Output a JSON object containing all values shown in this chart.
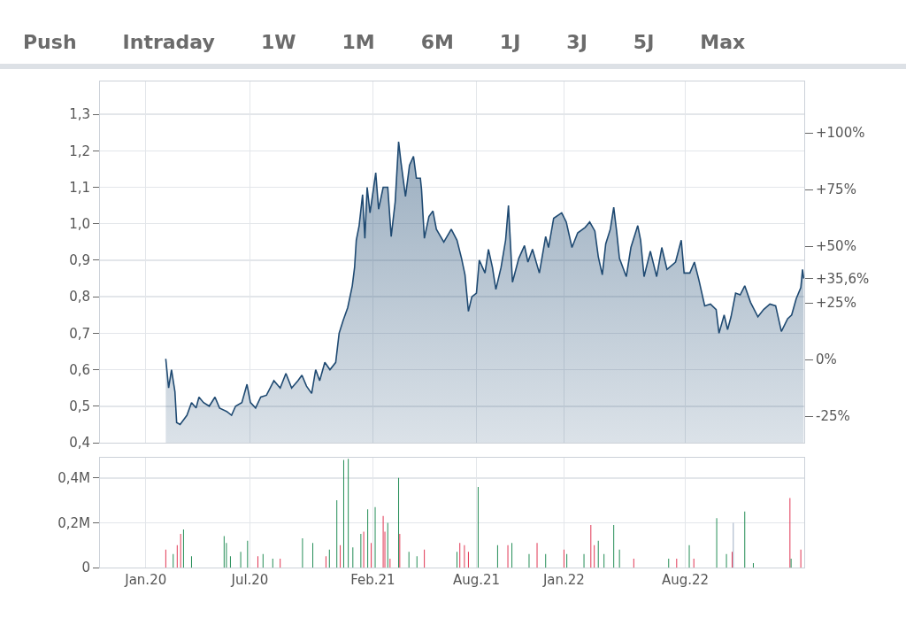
{
  "chart_data": [
    {
      "type": "area",
      "annotations": [
        "Push",
        "Intraday",
        "1W",
        "1M",
        "6M",
        "1J",
        "3J",
        "5J",
        "Max"
      ],
      "tick_labels": "y",
      "grid": true,
      "xlim": [
        "2019-10-13",
        "2023-02-25"
      ],
      "xticks": [
        {
          "value": "2020-01-01",
          "label": null
        },
        {
          "value": "2020-07-01",
          "label": null
        },
        {
          "value": "2021-02-01",
          "label": null
        },
        {
          "value": "2021-08-01",
          "label": null
        },
        {
          "value": "2022-01-01",
          "label": null
        },
        {
          "value": "2022-08-01",
          "label": null
        }
      ],
      "ylim": [
        0.4,
        1.39
      ],
      "yticks": [
        {
          "value": 0.4,
          "label": "0,4"
        },
        {
          "value": 0.5,
          "label": "0,5"
        },
        {
          "value": 0.6,
          "label": "0,6"
        },
        {
          "value": 0.7,
          "label": "0,7"
        },
        {
          "value": 0.8,
          "label": "0,8"
        },
        {
          "value": 0.9,
          "label": "0,9"
        },
        {
          "value": 1.0,
          "label": "1,0"
        },
        {
          "value": 1.1,
          "label": "1,1"
        },
        {
          "value": 1.2,
          "label": "1,2"
        },
        {
          "value": 1.3,
          "label": "1,3"
        }
      ],
      "y2lim": [
        -36.7,
        122.7
      ],
      "y2ticks": [
        {
          "value": -25,
          "label": "-25%"
        },
        {
          "value": 0,
          "label": "0%"
        },
        {
          "value": 25,
          "label": "+25%"
        },
        {
          "value": 35.6,
          "label": "+35,6%"
        },
        {
          "value": 50,
          "label": "+50%"
        },
        {
          "value": 75,
          "label": "+75%"
        },
        {
          "value": 100,
          "label": "+100%"
        }
      ],
      "series": [
        {
          "color": "#1f4a72",
          "x": [
            "2020-02-05",
            "2020-02-10",
            "2020-02-15",
            "2020-02-21",
            "2020-02-24",
            "2020-03-01",
            "2020-03-13",
            "2020-03-21",
            "2020-03-29",
            "2020-04-03",
            "2020-04-11",
            "2020-04-21",
            "2020-05-01",
            "2020-05-09",
            "2020-05-22",
            "2020-05-30",
            "2020-06-06",
            "2020-06-17",
            "2020-06-26",
            "2020-07-02",
            "2020-07-11",
            "2020-07-20",
            "2020-07-30",
            "2020-08-12",
            "2020-08-23",
            "2020-09-02",
            "2020-09-12",
            "2020-09-23",
            "2020-09-30",
            "2020-10-08",
            "2020-10-17",
            "2020-10-24",
            "2020-10-31",
            "2020-11-09",
            "2020-11-18",
            "2020-11-28",
            "2020-12-04",
            "2020-12-11",
            "2020-12-19",
            "2020-12-27",
            "2020-12-31",
            "2021-01-03",
            "2021-01-08",
            "2021-01-14",
            "2021-01-18",
            "2021-01-22",
            "2021-01-27",
            "2021-02-06",
            "2021-02-11",
            "2021-02-19",
            "2021-02-27",
            "2021-03-05",
            "2021-03-12",
            "2021-03-18",
            "2021-03-22",
            "2021-03-30",
            "2021-04-06",
            "2021-04-13",
            "2021-04-18",
            "2021-04-25",
            "2021-04-27",
            "2021-05-02",
            "2021-05-10",
            "2021-05-17",
            "2021-05-23",
            "2021-06-05",
            "2021-06-18",
            "2021-06-28",
            "2021-07-06",
            "2021-07-12",
            "2021-07-18",
            "2021-07-24",
            "2021-08-01",
            "2021-08-06",
            "2021-08-16",
            "2021-08-22",
            "2021-08-29",
            "2021-09-04",
            "2021-09-13",
            "2021-09-21",
            "2021-09-26",
            "2021-10-03",
            "2021-10-14",
            "2021-10-24",
            "2021-10-30",
            "2021-11-07",
            "2021-11-19",
            "2021-11-30",
            "2021-12-05",
            "2021-12-14",
            "2021-12-28",
            "2022-01-05",
            "2022-01-15",
            "2022-01-25",
            "2022-02-07",
            "2022-02-15",
            "2022-02-24",
            "2022-03-02",
            "2022-03-09",
            "2022-03-15",
            "2022-03-23",
            "2022-03-29",
            "2022-04-03",
            "2022-04-08",
            "2022-04-20",
            "2022-04-28",
            "2022-05-10",
            "2022-05-15",
            "2022-05-21",
            "2022-06-01",
            "2022-06-12",
            "2022-06-21",
            "2022-06-30",
            "2022-07-15",
            "2022-07-25",
            "2022-07-30",
            "2022-08-09",
            "2022-08-17",
            "2022-08-25",
            "2022-09-04",
            "2022-09-14",
            "2022-09-24",
            "2022-09-29",
            "2022-10-08",
            "2022-10-14",
            "2022-10-20",
            "2022-10-28",
            "2022-11-05",
            "2022-11-13",
            "2022-11-23",
            "2022-12-06",
            "2022-12-16",
            "2022-12-27",
            "2023-01-06",
            "2023-01-16",
            "2023-01-27",
            "2023-02-03",
            "2023-02-11",
            "2023-02-19",
            "2023-02-22",
            "2023-02-24"
          ],
          "values": [
            0.63,
            0.55,
            0.6,
            0.54,
            0.455,
            0.45,
            0.475,
            0.51,
            0.495,
            0.525,
            0.51,
            0.5,
            0.525,
            0.495,
            0.485,
            0.475,
            0.5,
            0.51,
            0.56,
            0.51,
            0.495,
            0.525,
            0.53,
            0.57,
            0.55,
            0.59,
            0.55,
            0.57,
            0.585,
            0.555,
            0.535,
            0.6,
            0.57,
            0.62,
            0.6,
            0.62,
            0.7,
            0.735,
            0.77,
            0.83,
            0.88,
            0.955,
            0.995,
            1.08,
            0.96,
            1.1,
            1.03,
            1.14,
            1.04,
            1.1,
            1.1,
            0.965,
            1.06,
            1.225,
            1.17,
            1.075,
            1.16,
            1.185,
            1.125,
            1.125,
            1.095,
            0.96,
            1.02,
            1.035,
            0.985,
            0.95,
            0.985,
            0.955,
            0.905,
            0.86,
            0.76,
            0.8,
            0.81,
            0.9,
            0.865,
            0.93,
            0.88,
            0.82,
            0.88,
            0.955,
            1.05,
            0.84,
            0.905,
            0.94,
            0.895,
            0.93,
            0.865,
            0.965,
            0.935,
            1.015,
            1.03,
            1.005,
            0.935,
            0.975,
            0.99,
            1.005,
            0.98,
            0.91,
            0.86,
            0.945,
            0.985,
            1.045,
            0.98,
            0.905,
            0.855,
            0.935,
            0.995,
            0.955,
            0.855,
            0.925,
            0.855,
            0.935,
            0.875,
            0.895,
            0.955,
            0.865,
            0.865,
            0.895,
            0.845,
            0.775,
            0.78,
            0.765,
            0.7,
            0.75,
            0.71,
            0.745,
            0.81,
            0.805,
            0.83,
            0.785,
            0.745,
            0.765,
            0.78,
            0.775,
            0.705,
            0.74,
            0.75,
            0.795,
            0.825,
            0.875,
            0.85
          ]
        }
      ]
    },
    {
      "type": "bar",
      "grid": true,
      "xlim": [
        "2019-10-13",
        "2023-02-25"
      ],
      "xticks": [
        {
          "value": "2020-01-01",
          "label": "Jan.20"
        },
        {
          "value": "2020-07-01",
          "label": "Jul.20"
        },
        {
          "value": "2021-02-01",
          "label": "Feb.21"
        },
        {
          "value": "2021-08-01",
          "label": "Aug.21"
        },
        {
          "value": "2022-01-01",
          "label": "Jan.22"
        },
        {
          "value": "2022-08-01",
          "label": "Aug.22"
        }
      ],
      "ylim": [
        0,
        0.49
      ],
      "yticks": [
        0,
        {
          "value": 0.2,
          "label": "0,2M"
        },
        {
          "value": 0.4,
          "label": "0,4M"
        }
      ],
      "x": [
        "2020-02-05",
        "2020-02-18",
        "2020-02-25",
        "2020-03-02",
        "2020-03-07",
        "2020-03-21",
        "2020-05-17",
        "2020-05-21",
        "2020-05-28",
        "2020-06-15",
        "2020-06-27",
        "2020-07-15",
        "2020-07-24",
        "2020-08-10",
        "2020-08-23",
        "2020-10-01",
        "2020-10-19",
        "2020-11-11",
        "2020-11-17",
        "2020-11-30",
        "2020-12-06",
        "2020-12-12",
        "2020-12-20",
        "2020-12-28",
        "2021-01-11",
        "2021-01-16",
        "2021-01-23",
        "2021-01-29",
        "2021-02-05",
        "2021-02-19",
        "2021-02-22",
        "2021-02-27",
        "2021-03-03",
        "2021-03-18",
        "2021-03-20",
        "2021-04-05",
        "2021-04-19",
        "2021-05-02",
        "2021-06-28",
        "2021-07-03",
        "2021-07-11",
        "2021-07-18",
        "2021-08-04",
        "2021-09-07",
        "2021-09-25",
        "2021-10-02",
        "2021-11-01",
        "2021-11-15",
        "2021-11-30",
        "2022-01-01",
        "2022-01-06",
        "2022-02-05",
        "2022-02-17",
        "2022-02-23",
        "2022-03-02",
        "2022-03-12",
        "2022-03-29",
        "2022-04-08",
        "2022-05-03",
        "2022-07-03",
        "2022-07-17",
        "2022-08-08",
        "2022-08-16",
        "2022-09-25",
        "2022-10-12",
        "2022-10-22",
        "2022-10-24",
        "2022-11-13",
        "2022-11-28",
        "2023-01-31",
        "2023-02-02",
        "2023-02-19"
      ],
      "values": [
        0.08,
        0.06,
        0.1,
        0.15,
        0.17,
        0.05,
        0.14,
        0.11,
        0.05,
        0.07,
        0.12,
        0.05,
        0.06,
        0.04,
        0.04,
        0.13,
        0.11,
        0.05,
        0.08,
        0.3,
        0.1,
        0.48,
        0.485,
        0.09,
        0.15,
        0.16,
        0.26,
        0.11,
        0.27,
        0.23,
        0.16,
        0.2,
        0.04,
        0.4,
        0.15,
        0.07,
        0.05,
        0.08,
        0.07,
        0.11,
        0.1,
        0.07,
        0.36,
        0.1,
        0.1,
        0.11,
        0.06,
        0.11,
        0.06,
        0.08,
        0.06,
        0.06,
        0.19,
        0.1,
        0.12,
        0.06,
        0.19,
        0.08,
        0.04,
        0.04,
        0.04,
        0.1,
        0.04,
        0.22,
        0.06,
        0.07,
        0.2,
        0.25,
        0.02,
        0.31,
        0.04,
        0.08
      ],
      "colors": [
        "#e0314f",
        "#1e8a52",
        "#e0314f",
        "#e0314f",
        "#1e8a52",
        "#1e8a52",
        "#1e8a52",
        "#1e8a52",
        "#1e8a52",
        "#1e8a52",
        "#1e8a52",
        "#e0314f",
        "#1e8a52",
        "#1e8a52",
        "#e0314f",
        "#1e8a52",
        "#1e8a52",
        "#e0314f",
        "#1e8a52",
        "#1e8a52",
        "#e0314f",
        "#1e8a52",
        "#1e8a52",
        "#1e8a52",
        "#1e8a52",
        "#e0314f",
        "#1e8a52",
        "#e0314f",
        "#1e8a52",
        "#e0314f",
        "#e0314f",
        "#1e8a52",
        "#e0314f",
        "#1e8a52",
        "#e0314f",
        "#1e8a52",
        "#1e8a52",
        "#e0314f",
        "#1e8a52",
        "#e0314f",
        "#e0314f",
        "#e0314f",
        "#1e8a52",
        "#1e8a52",
        "#e0314f",
        "#1e8a52",
        "#1e8a52",
        "#e0314f",
        "#1e8a52",
        "#e0314f",
        "#1e8a52",
        "#1e8a52",
        "#e0314f",
        "#e0314f",
        "#1e8a52",
        "#1e8a52",
        "#1e8a52",
        "#1e8a52",
        "#e0314f",
        "#1e8a52",
        "#e0314f",
        "#1e8a52",
        "#e0314f",
        "#1e8a52",
        "#1e8a52",
        "#e0314f",
        "#9aaac2",
        "#1e8a52",
        "#1e8a52",
        "#e0314f",
        "#1e8a52",
        "#e0314f"
      ]
    }
  ]
}
